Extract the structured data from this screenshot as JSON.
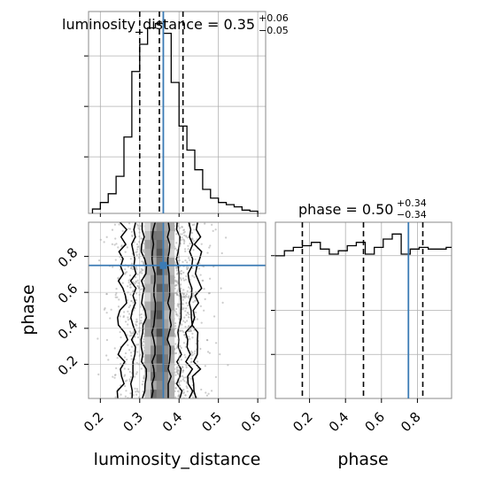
{
  "chart_data": [
    {
      "type": "histogram",
      "panel": "luminosity_distance marginal",
      "title_param": "luminosity_distance",
      "title_value": "0.35",
      "title_upper": "+0.06",
      "title_lower": "−0.05",
      "bin_edges": [
        0.18,
        0.2,
        0.22,
        0.24,
        0.26,
        0.28,
        0.3,
        0.32,
        0.34,
        0.36,
        0.38,
        0.4,
        0.42,
        0.44,
        0.46,
        0.48,
        0.5,
        0.52,
        0.54,
        0.56,
        0.58,
        0.6
      ],
      "counts": [
        4,
        10,
        18,
        34,
        70,
        130,
        155,
        170,
        174,
        165,
        120,
        80,
        58,
        40,
        22,
        14,
        10,
        8,
        6,
        3,
        2
      ],
      "quantile_lines": [
        0.3,
        0.35,
        0.41
      ],
      "truth": 0.36,
      "xlim": [
        0.17,
        0.62
      ],
      "ylim": [
        0,
        185
      ],
      "grid": true
    },
    {
      "type": "histogram",
      "panel": "phase marginal",
      "title_param": "phase",
      "title_value": "0.50",
      "title_upper": "+0.34",
      "title_lower": "−0.34",
      "bin_edges": [
        0.01,
        0.06,
        0.11,
        0.16,
        0.21,
        0.26,
        0.31,
        0.36,
        0.41,
        0.46,
        0.51,
        0.56,
        0.61,
        0.66,
        0.71,
        0.76,
        0.81,
        0.86,
        0.91,
        0.96,
        0.99
      ],
      "counts": [
        85,
        88,
        90,
        91,
        93,
        89,
        86,
        88,
        91,
        93,
        86,
        90,
        95,
        98,
        86,
        89,
        90,
        89,
        89,
        90
      ],
      "quantile_lines": [
        0.16,
        0.5,
        0.83
      ],
      "truth": 0.75,
      "xlim": [
        0.01,
        0.99
      ],
      "ylim": [
        0,
        105
      ],
      "grid": true
    },
    {
      "type": "scatter",
      "panel": "2D posterior",
      "xlabel": "luminosity_distance",
      "ylabel": "phase",
      "xlim": [
        0.17,
        0.62
      ],
      "ylim": [
        0.01,
        0.99
      ],
      "xticks": [
        "0.2",
        "0.3",
        "0.4",
        "0.5",
        "0.6"
      ],
      "yticks": [
        "0.2",
        "0.4",
        "0.6",
        "0.8"
      ],
      "truth": [
        0.36,
        0.75
      ],
      "density_center_x": 0.355,
      "density_sigma_x": 0.045,
      "grid": true
    }
  ],
  "phase_panel": {
    "xlabel": "phase",
    "xticks": [
      "0.2",
      "0.4",
      "0.6",
      "0.8"
    ]
  },
  "colors": {
    "truth": "#3b7bb5",
    "hist": "#000000",
    "grid": "#b0b0b0",
    "scatter": "#aaaaaa"
  }
}
